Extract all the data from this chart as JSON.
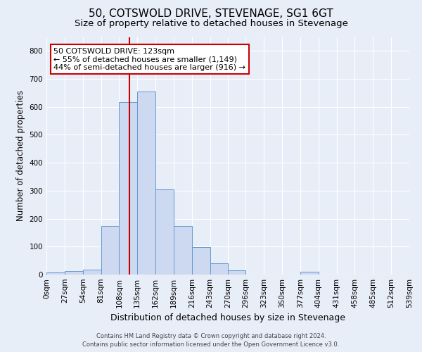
{
  "title": "50, COTSWOLD DRIVE, STEVENAGE, SG1 6GT",
  "subtitle": "Size of property relative to detached houses in Stevenage",
  "xlabel": "Distribution of detached houses by size in Stevenage",
  "ylabel": "Number of detached properties",
  "footnote1": "Contains HM Land Registry data © Crown copyright and database right 2024.",
  "footnote2": "Contains public sector information licensed under the Open Government Licence v3.0.",
  "bin_labels": [
    "0sqm",
    "27sqm",
    "54sqm",
    "81sqm",
    "108sqm",
    "135sqm",
    "162sqm",
    "189sqm",
    "216sqm",
    "243sqm",
    "270sqm",
    "296sqm",
    "323sqm",
    "350sqm",
    "377sqm",
    "404sqm",
    "431sqm",
    "458sqm",
    "485sqm",
    "512sqm",
    "539sqm"
  ],
  "bin_edges": [
    0,
    27,
    54,
    81,
    108,
    135,
    162,
    189,
    216,
    243,
    270,
    296,
    323,
    350,
    377,
    404,
    431,
    458,
    485,
    512,
    539
  ],
  "bar_values": [
    7,
    12,
    17,
    175,
    618,
    655,
    305,
    175,
    98,
    40,
    14,
    0,
    0,
    0,
    10,
    0,
    0,
    0,
    0,
    0
  ],
  "bar_color": "#ccd9f0",
  "bar_edge_color": "#6699cc",
  "property_size": 123,
  "vline_color": "#cc0000",
  "annotation_title": "50 COTSWOLD DRIVE: 123sqm",
  "annotation_line1": "← 55% of detached houses are smaller (1,149)",
  "annotation_line2": "44% of semi-detached houses are larger (916) →",
  "annotation_box_color": "#ffffff",
  "annotation_box_edge": "#cc0000",
  "ylim": [
    0,
    850
  ],
  "yticks": [
    0,
    100,
    200,
    300,
    400,
    500,
    600,
    700,
    800
  ],
  "bg_color": "#e8eef8",
  "grid_color": "#ffffff",
  "title_fontsize": 11,
  "subtitle_fontsize": 9.5,
  "ylabel_fontsize": 8.5,
  "xlabel_fontsize": 9,
  "tick_fontsize": 7.5,
  "footnote_fontsize": 6,
  "annotation_fontsize": 8
}
